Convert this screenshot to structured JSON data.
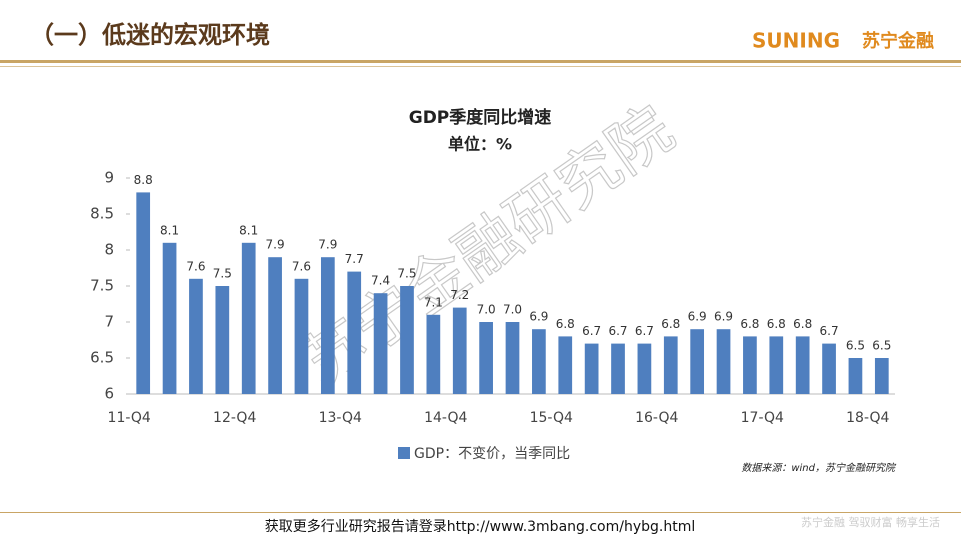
{
  "header": {
    "title": "（一）低迷的宏观环境",
    "logo_en": "SUNING",
    "logo_cn": "苏宁金融"
  },
  "chart_data": {
    "type": "bar",
    "title": "GDP季度同比增速",
    "subtitle": "单位：%",
    "categories": [
      "11-Q4",
      null,
      null,
      null,
      "12-Q4",
      null,
      null,
      null,
      "13-Q4",
      null,
      null,
      null,
      "14-Q4",
      null,
      null,
      null,
      "15-Q4",
      null,
      null,
      null,
      "16-Q4",
      null,
      null,
      null,
      "17-Q4",
      null,
      null,
      null,
      "18-Q4"
    ],
    "series": [
      {
        "name": "GDP：不变价，当季同比",
        "color": "#4f7fbf",
        "values": [
          8.8,
          8.1,
          7.6,
          7.5,
          8.1,
          7.9,
          7.6,
          7.9,
          7.7,
          7.4,
          7.5,
          7.1,
          7.2,
          7.0,
          7.0,
          6.9,
          6.8,
          6.7,
          6.7,
          6.7,
          6.8,
          6.9,
          6.9,
          6.8,
          6.8,
          6.8,
          6.7,
          6.5,
          6.5
        ],
        "value_labels": [
          "8.8",
          "8.1",
          "7.6",
          "7.5",
          "8.1",
          "7.9",
          "7.6",
          "7.9",
          "7.7",
          "7.4",
          "7.5",
          "7.1",
          "7.2",
          "7.0",
          "7.0",
          "6.9",
          "6.8",
          "6.7",
          "6.7",
          "6.7",
          "6.8",
          "6.9",
          "6.9",
          "6.8",
          "6.8",
          "6.8",
          "6.7",
          "6.5",
          "6.5"
        ]
      }
    ],
    "ylim": [
      6,
      9
    ],
    "yticks": [
      6,
      6.5,
      7,
      7.5,
      8,
      8.5,
      9
    ],
    "legend": "bottom-left",
    "source": "数据来源：wind，苏宁金融研究院",
    "watermark": "苏宁金融研究院"
  },
  "footer": {
    "link": "获取更多行业研究报告请登录http://www.3mbang.com/hybg.html",
    "slogan": "苏宁金融 驾驭财富 畅享生活"
  }
}
